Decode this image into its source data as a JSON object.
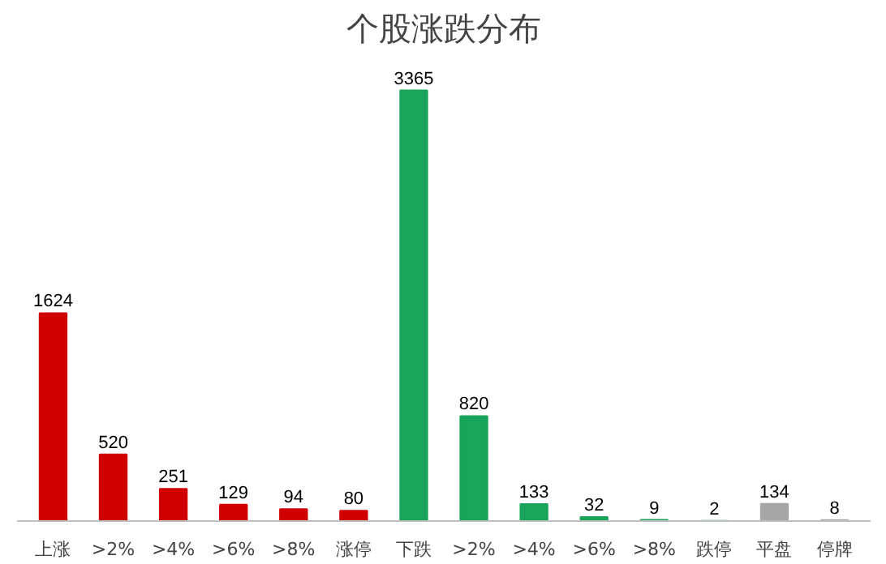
{
  "chart_data": {
    "type": "bar",
    "title": "个股涨跌分布",
    "categories": [
      "上涨",
      ">2%",
      ">4%",
      ">6%",
      ">8%",
      "涨停",
      "下跌",
      ">2%",
      ">4%",
      ">6%",
      ">8%",
      "跌停",
      "平盘",
      "停牌"
    ],
    "values": [
      1624,
      520,
      251,
      129,
      94,
      80,
      3365,
      820,
      133,
      32,
      9,
      2,
      134,
      8
    ],
    "colors": [
      "#d00000",
      "#d00000",
      "#d00000",
      "#d00000",
      "#d00000",
      "#d00000",
      "#1aa35a",
      "#1aa35a",
      "#1aa35a",
      "#1aa35a",
      "#1aa35a",
      "#1aa35a",
      "#a6a6a6",
      "#a6a6a6"
    ],
    "data_labels": true
  }
}
